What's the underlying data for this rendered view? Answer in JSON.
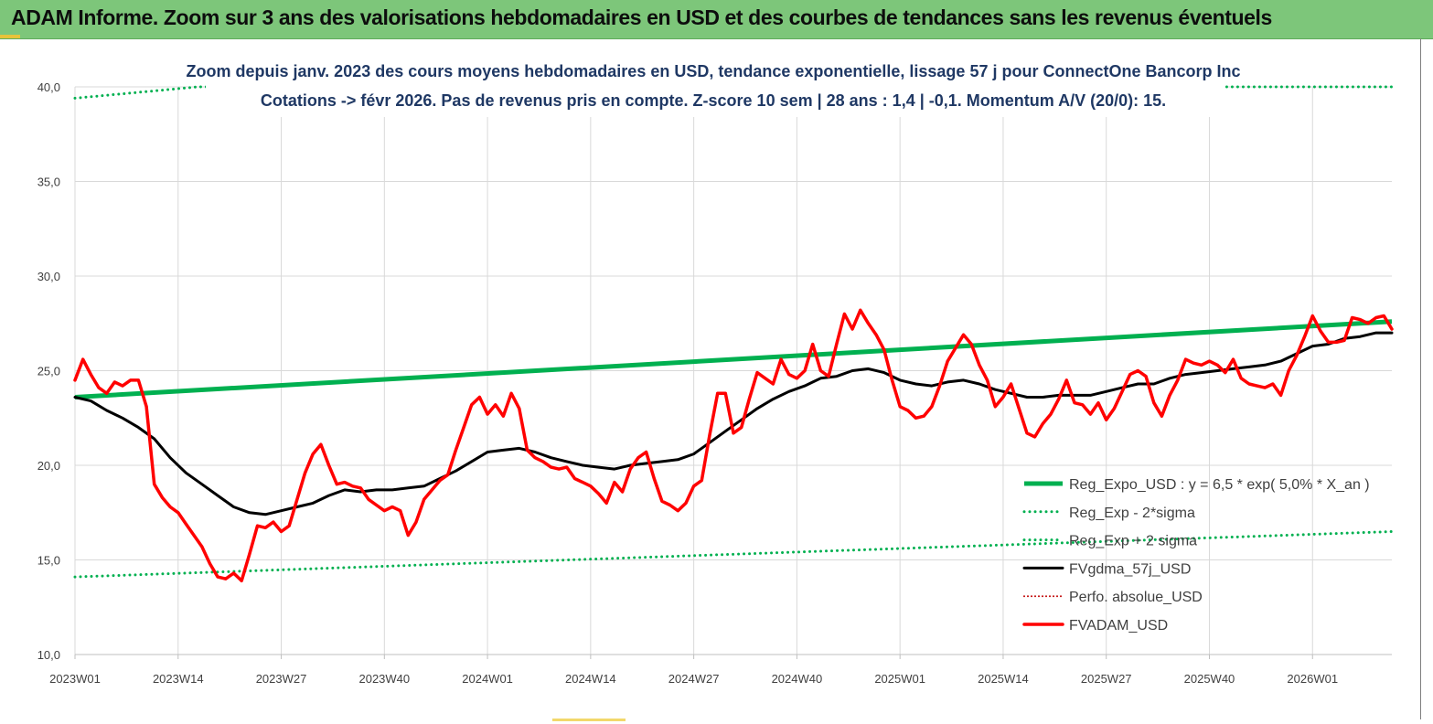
{
  "header": {
    "title": "ADAM Informe. Zoom sur 3 ans des valorisations hebdomadaires en USD et des courbes de tendances sans les revenus éventuels"
  },
  "chart_data": {
    "type": "line",
    "title_line1": "Zoom depuis janv. 2023 des cours moyens hebdomadaires en USD, tendance exponentielle, lissage 57 j pour ConnectOne Bancorp Inc",
    "title_line2": "Cotations -> févr 2026.  Pas de revenus pris en compte. Z-score 10 sem | 28 ans : 1,4 | -0,1. Momentum A/V (20/0): 15.",
    "ylim": [
      10,
      40
    ],
    "yticks": [
      "10,0",
      "15,0",
      "20,0",
      "25,0",
      "30,0",
      "35,0",
      "40,0"
    ],
    "xticks": [
      "2023W01",
      "2023W14",
      "2023W27",
      "2023W40",
      "2024W01",
      "2024W14",
      "2024W27",
      "2024W40",
      "2025W01",
      "2025W14",
      "2025W27",
      "2025W40",
      "2026W01"
    ],
    "x_range_weeks": [
      0,
      166
    ],
    "grid": "vertical",
    "legend_position": "bottom-right",
    "colors": {
      "reg_expo": "#00b050",
      "reg_band": "#00b050",
      "fvgdma": "#000000",
      "perfo": "#c00000",
      "fvadam": "#ff0000"
    },
    "series": [
      {
        "name": "Reg_Expo_USD : y = 6,5 * exp( 5,0% *  X_an )",
        "style": "solid-thick",
        "values": [
          [
            0,
            23.6
          ],
          [
            166,
            27.6
          ]
        ]
      },
      {
        "name": "Reg_Exp - 2*sigma",
        "style": "dotted",
        "values": [
          [
            0,
            14.1
          ],
          [
            166,
            16.5
          ]
        ]
      },
      {
        "name": "Reg_Exp + 2 sigma",
        "style": "dotted",
        "values": [
          [
            0,
            39.4
          ],
          [
            15.5,
            40.0
          ],
          [
            166,
            40.0
          ]
        ]
      },
      {
        "name": "FVgdma_57j_USD",
        "style": "solid",
        "values": [
          [
            0,
            23.6
          ],
          [
            2,
            23.4
          ],
          [
            4,
            22.9
          ],
          [
            6,
            22.5
          ],
          [
            8,
            22.0
          ],
          [
            10,
            21.4
          ],
          [
            12,
            20.4
          ],
          [
            14,
            19.6
          ],
          [
            16,
            19.0
          ],
          [
            18,
            18.4
          ],
          [
            20,
            17.8
          ],
          [
            22,
            17.5
          ],
          [
            24,
            17.4
          ],
          [
            26,
            17.6
          ],
          [
            28,
            17.8
          ],
          [
            30,
            18.0
          ],
          [
            32,
            18.4
          ],
          [
            34,
            18.7
          ],
          [
            36,
            18.6
          ],
          [
            38,
            18.7
          ],
          [
            40,
            18.7
          ],
          [
            42,
            18.8
          ],
          [
            44,
            18.9
          ],
          [
            46,
            19.3
          ],
          [
            48,
            19.7
          ],
          [
            50,
            20.2
          ],
          [
            52,
            20.7
          ],
          [
            54,
            20.8
          ],
          [
            56,
            20.9
          ],
          [
            58,
            20.7
          ],
          [
            60,
            20.4
          ],
          [
            62,
            20.2
          ],
          [
            64,
            20.0
          ],
          [
            66,
            19.9
          ],
          [
            68,
            19.8
          ],
          [
            70,
            20.0
          ],
          [
            72,
            20.1
          ],
          [
            74,
            20.2
          ],
          [
            76,
            20.3
          ],
          [
            78,
            20.6
          ],
          [
            80,
            21.2
          ],
          [
            82,
            21.8
          ],
          [
            84,
            22.4
          ],
          [
            86,
            23.0
          ],
          [
            88,
            23.5
          ],
          [
            90,
            23.9
          ],
          [
            92,
            24.2
          ],
          [
            94,
            24.6
          ],
          [
            96,
            24.7
          ],
          [
            98,
            25.0
          ],
          [
            100,
            25.1
          ],
          [
            102,
            24.9
          ],
          [
            104,
            24.5
          ],
          [
            106,
            24.3
          ],
          [
            108,
            24.2
          ],
          [
            110,
            24.4
          ],
          [
            112,
            24.5
          ],
          [
            114,
            24.3
          ],
          [
            116,
            24.0
          ],
          [
            118,
            23.8
          ],
          [
            120,
            23.6
          ],
          [
            122,
            23.6
          ],
          [
            124,
            23.7
          ],
          [
            126,
            23.7
          ],
          [
            128,
            23.7
          ],
          [
            130,
            23.9
          ],
          [
            132,
            24.1
          ],
          [
            134,
            24.3
          ],
          [
            136,
            24.3
          ],
          [
            138,
            24.6
          ],
          [
            140,
            24.8
          ],
          [
            142,
            24.9
          ],
          [
            144,
            25.0
          ],
          [
            146,
            25.1
          ],
          [
            148,
            25.2
          ],
          [
            150,
            25.3
          ],
          [
            152,
            25.5
          ],
          [
            154,
            25.9
          ],
          [
            156,
            26.3
          ],
          [
            158,
            26.4
          ],
          [
            160,
            26.7
          ],
          [
            162,
            26.8
          ],
          [
            164,
            27.0
          ],
          [
            166,
            27.0
          ]
        ]
      },
      {
        "name": "Perfo. absolue_USD",
        "style": "dotted",
        "values": []
      },
      {
        "name": "FVADAM_USD",
        "style": "solid-thick",
        "values": [
          [
            0,
            24.5
          ],
          [
            1,
            25.6
          ],
          [
            2,
            24.8
          ],
          [
            3,
            24.1
          ],
          [
            4,
            23.8
          ],
          [
            5,
            24.4
          ],
          [
            6,
            24.2
          ],
          [
            7,
            24.5
          ],
          [
            8,
            24.5
          ],
          [
            9,
            23.1
          ],
          [
            10,
            19.0
          ],
          [
            11,
            18.3
          ],
          [
            12,
            17.8
          ],
          [
            13,
            17.5
          ],
          [
            14,
            16.9
          ],
          [
            15,
            16.3
          ],
          [
            16,
            15.7
          ],
          [
            17,
            14.8
          ],
          [
            18,
            14.1
          ],
          [
            19,
            14.0
          ],
          [
            20,
            14.3
          ],
          [
            21,
            13.9
          ],
          [
            22,
            15.3
          ],
          [
            23,
            16.8
          ],
          [
            24,
            16.7
          ],
          [
            25,
            17.0
          ],
          [
            26,
            16.5
          ],
          [
            27,
            16.8
          ],
          [
            28,
            18.2
          ],
          [
            29,
            19.6
          ],
          [
            30,
            20.6
          ],
          [
            31,
            21.1
          ],
          [
            32,
            20.0
          ],
          [
            33,
            19.0
          ],
          [
            34,
            19.1
          ],
          [
            35,
            18.9
          ],
          [
            36,
            18.8
          ],
          [
            37,
            18.2
          ],
          [
            38,
            17.9
          ],
          [
            39,
            17.6
          ],
          [
            40,
            17.8
          ],
          [
            41,
            17.6
          ],
          [
            42,
            16.3
          ],
          [
            43,
            17.0
          ],
          [
            44,
            18.2
          ],
          [
            45,
            18.7
          ],
          [
            46,
            19.2
          ],
          [
            47,
            19.5
          ],
          [
            48,
            20.8
          ],
          [
            49,
            22.0
          ],
          [
            50,
            23.2
          ],
          [
            51,
            23.6
          ],
          [
            52,
            22.7
          ],
          [
            53,
            23.2
          ],
          [
            54,
            22.6
          ],
          [
            55,
            23.8
          ],
          [
            56,
            23.0
          ],
          [
            57,
            20.8
          ],
          [
            58,
            20.4
          ],
          [
            59,
            20.2
          ],
          [
            60,
            19.9
          ],
          [
            61,
            19.8
          ],
          [
            62,
            19.9
          ],
          [
            63,
            19.3
          ],
          [
            64,
            19.1
          ],
          [
            65,
            18.9
          ],
          [
            66,
            18.5
          ],
          [
            67,
            18.0
          ],
          [
            68,
            19.1
          ],
          [
            69,
            18.6
          ],
          [
            70,
            19.8
          ],
          [
            71,
            20.4
          ],
          [
            72,
            20.7
          ],
          [
            73,
            19.3
          ],
          [
            74,
            18.1
          ],
          [
            75,
            17.9
          ],
          [
            76,
            17.6
          ],
          [
            77,
            18.0
          ],
          [
            78,
            18.9
          ],
          [
            79,
            19.2
          ],
          [
            80,
            21.6
          ],
          [
            81,
            23.8
          ],
          [
            82,
            23.8
          ],
          [
            83,
            21.7
          ],
          [
            84,
            22.0
          ],
          [
            85,
            23.5
          ],
          [
            86,
            24.9
          ],
          [
            87,
            24.6
          ],
          [
            88,
            24.3
          ],
          [
            89,
            25.6
          ],
          [
            90,
            24.8
          ],
          [
            91,
            24.6
          ],
          [
            92,
            25.0
          ],
          [
            93,
            26.4
          ],
          [
            94,
            25.0
          ],
          [
            95,
            24.7
          ],
          [
            96,
            26.4
          ],
          [
            97,
            28.0
          ],
          [
            98,
            27.2
          ],
          [
            99,
            28.2
          ],
          [
            100,
            27.5
          ],
          [
            101,
            26.9
          ],
          [
            102,
            26.1
          ],
          [
            103,
            24.5
          ],
          [
            104,
            23.1
          ],
          [
            105,
            22.9
          ],
          [
            106,
            22.5
          ],
          [
            107,
            22.6
          ],
          [
            108,
            23.1
          ],
          [
            109,
            24.2
          ],
          [
            110,
            25.5
          ],
          [
            111,
            26.2
          ],
          [
            112,
            26.9
          ],
          [
            113,
            26.4
          ],
          [
            114,
            25.3
          ],
          [
            115,
            24.5
          ],
          [
            116,
            23.1
          ],
          [
            117,
            23.6
          ],
          [
            118,
            24.3
          ],
          [
            119,
            23.0
          ],
          [
            120,
            21.7
          ],
          [
            121,
            21.5
          ],
          [
            122,
            22.2
          ],
          [
            123,
            22.7
          ],
          [
            124,
            23.5
          ],
          [
            125,
            24.5
          ],
          [
            126,
            23.3
          ],
          [
            127,
            23.2
          ],
          [
            128,
            22.7
          ],
          [
            129,
            23.3
          ],
          [
            130,
            22.4
          ],
          [
            131,
            23.0
          ],
          [
            132,
            23.9
          ],
          [
            133,
            24.8
          ],
          [
            134,
            25.0
          ],
          [
            135,
            24.7
          ],
          [
            136,
            23.3
          ],
          [
            137,
            22.6
          ],
          [
            138,
            23.7
          ],
          [
            139,
            24.5
          ],
          [
            140,
            25.6
          ],
          [
            141,
            25.4
          ],
          [
            142,
            25.3
          ],
          [
            143,
            25.5
          ],
          [
            144,
            25.3
          ],
          [
            145,
            24.9
          ],
          [
            146,
            25.6
          ],
          [
            147,
            24.6
          ],
          [
            148,
            24.3
          ],
          [
            149,
            24.2
          ],
          [
            150,
            24.1
          ],
          [
            151,
            24.3
          ],
          [
            152,
            23.7
          ],
          [
            153,
            25.0
          ],
          [
            154,
            25.8
          ],
          [
            155,
            26.8
          ],
          [
            156,
            27.9
          ],
          [
            157,
            27.1
          ],
          [
            158,
            26.5
          ],
          [
            159,
            26.5
          ],
          [
            160,
            26.6
          ],
          [
            161,
            27.8
          ],
          [
            162,
            27.7
          ],
          [
            163,
            27.5
          ],
          [
            164,
            27.8
          ],
          [
            165,
            27.9
          ],
          [
            166,
            27.2
          ]
        ]
      }
    ]
  }
}
